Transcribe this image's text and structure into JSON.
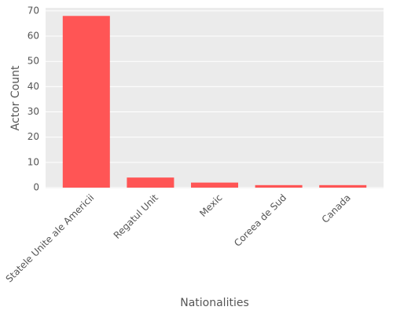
{
  "chart_data": {
    "type": "bar",
    "x_label": "Nationalities",
    "y_label": "Actor Count",
    "categories": [
      "Statele Unite ale Americii",
      "Regatul Unit",
      "Mexic",
      "Coreea de Sud",
      "Canada"
    ],
    "values": [
      68,
      4,
      2,
      1,
      1
    ],
    "color": "#ff5555",
    "ylim": [
      -0.3,
      71.2
    ],
    "yticks": [
      0,
      10,
      20,
      30,
      40,
      50,
      60,
      70
    ],
    "grid": true
  }
}
